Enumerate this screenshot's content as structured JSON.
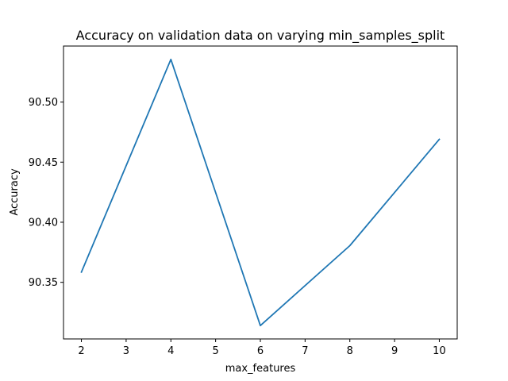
{
  "chart_data": {
    "type": "line",
    "title": "Accuracy on validation data on varying min_samples_split",
    "xlabel": "max_features",
    "ylabel": "Accuracy",
    "x": [
      2,
      4,
      6,
      8,
      10
    ],
    "series": [
      {
        "values": [
          90.3585,
          90.5355,
          90.314,
          90.3805,
          90.469
        ],
        "color": "#1f77b4"
      }
    ],
    "xlim": [
      1.6,
      10.4
    ],
    "ylim": [
      90.3029,
      90.5466
    ],
    "xticks": [
      2,
      3,
      4,
      5,
      6,
      7,
      8,
      9,
      10
    ],
    "yticks": [
      90.35,
      90.4,
      90.45,
      90.5
    ],
    "ytick_labels": [
      "90.35",
      "90.40",
      "90.45",
      "90.50"
    ],
    "grid": false,
    "legend": "none"
  }
}
